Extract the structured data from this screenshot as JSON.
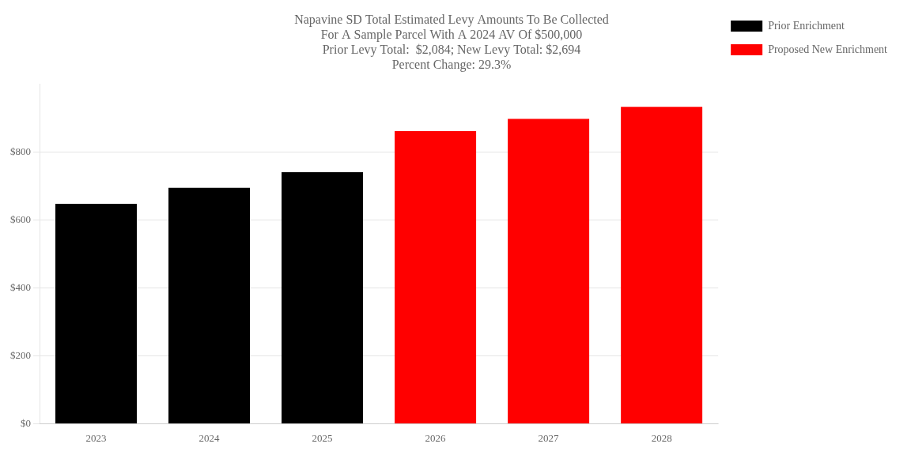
{
  "chart_data": {
    "type": "bar",
    "title": "Napavine SD Total Estimated Levy Amounts To Be Collected\nFor A Sample Parcel With A 2024 AV Of $500,000\nPrior Levy Total:  $2,084; New Levy Total: $2,694\nPercent Change: 29.3%",
    "categories": [
      "2023",
      "2024",
      "2025",
      "2026",
      "2027",
      "2028"
    ],
    "series": [
      {
        "name": "Prior Enrichment",
        "color": "#000000",
        "values": [
          648,
          695,
          741,
          null,
          null,
          null
        ]
      },
      {
        "name": "Proposed New Enrichment",
        "color": "#ff0000",
        "values": [
          null,
          null,
          null,
          862,
          898,
          934
        ]
      }
    ],
    "ylim": [
      0,
      1000
    ],
    "yticks": [
      {
        "value": 0,
        "label": "$0"
      },
      {
        "value": 200,
        "label": "$200"
      },
      {
        "value": 400,
        "label": "$400"
      },
      {
        "value": 600,
        "label": "$600"
      },
      {
        "value": 800,
        "label": "$800"
      }
    ],
    "grid": true,
    "legend": "right"
  }
}
